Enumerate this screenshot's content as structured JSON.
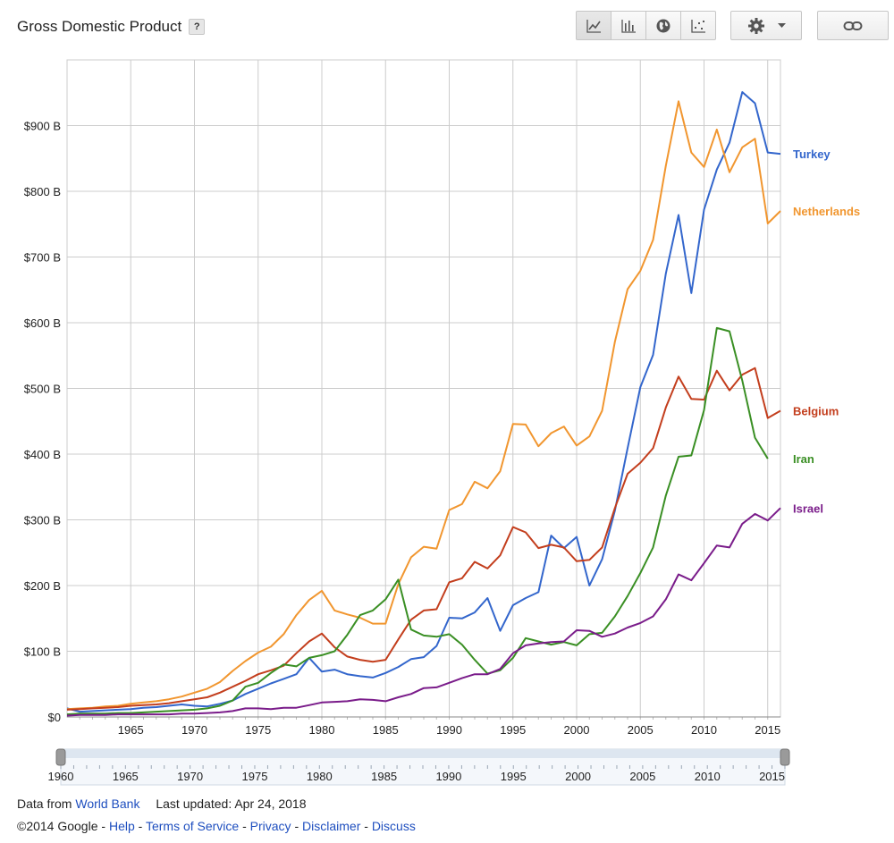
{
  "header": {
    "title": "Gross Domestic Product",
    "help_label": "?"
  },
  "toolbar": {
    "buttons": [
      {
        "name": "line-chart-icon",
        "active": true
      },
      {
        "name": "bar-chart-icon",
        "active": false
      },
      {
        "name": "map-globe-icon",
        "active": false
      },
      {
        "name": "scatter-chart-icon",
        "active": false
      }
    ],
    "settings_icon": "gear-icon",
    "link_icon": "link-icon"
  },
  "footer": {
    "data_from_label": "Data from",
    "data_source": "World Bank",
    "last_updated": "Last updated: Apr 24, 2018",
    "copyright": "©2014 Google",
    "links": [
      "Help",
      "Terms of Service",
      "Privacy",
      "Disclaimer",
      "Discuss"
    ]
  },
  "slider": {
    "tick_labels": [
      "1960",
      "1965",
      "1970",
      "1975",
      "1980",
      "1985",
      "1990",
      "1995",
      "2000",
      "2005",
      "2010",
      "2015"
    ],
    "range": [
      1960,
      2016
    ]
  },
  "chart_data": {
    "type": "line",
    "title": "Gross Domestic Product",
    "xlabel": "",
    "ylabel": "",
    "xlim": [
      1960,
      2016
    ],
    "ylim": [
      0,
      1000
    ],
    "x_ticks": [
      1965,
      1970,
      1975,
      1980,
      1985,
      1990,
      1995,
      2000,
      2005,
      2010,
      2015
    ],
    "y_ticks": [
      0,
      100,
      200,
      300,
      400,
      500,
      600,
      700,
      800,
      900
    ],
    "y_tick_labels": [
      "$0",
      "$100 B",
      "$200 B",
      "$300 B",
      "$400 B",
      "$500 B",
      "$600 B",
      "$700 B",
      "$800 B",
      "$900 B"
    ],
    "grid": true,
    "legend": "end-of-line labels, right",
    "x": [
      1960,
      1961,
      1962,
      1963,
      1964,
      1965,
      1966,
      1967,
      1968,
      1969,
      1970,
      1971,
      1972,
      1973,
      1974,
      1975,
      1976,
      1977,
      1978,
      1979,
      1980,
      1981,
      1982,
      1983,
      1984,
      1985,
      1986,
      1987,
      1988,
      1989,
      1990,
      1991,
      1992,
      1993,
      1994,
      1995,
      1996,
      1997,
      1998,
      1999,
      2000,
      2001,
      2002,
      2003,
      2004,
      2005,
      2006,
      2007,
      2008,
      2009,
      2010,
      2011,
      2012,
      2013,
      2014,
      2015,
      2016
    ],
    "series": [
      {
        "name": "Turkey",
        "color": "#3366cc",
        "values": [
          13,
          8,
          9,
          10,
          11,
          12,
          14,
          15,
          17,
          19,
          17,
          16,
          20,
          25,
          35,
          43,
          51,
          58,
          65,
          90,
          69,
          72,
          65,
          62,
          60,
          67,
          76,
          88,
          91,
          108,
          151,
          150,
          159,
          181,
          131,
          170,
          181,
          190,
          276,
          257,
          274,
          200,
          240,
          314,
          409,
          502,
          551,
          675,
          764,
          645,
          772,
          833,
          874,
          951,
          934,
          859,
          857
        ]
      },
      {
        "name": "Netherlands",
        "color": "#f1962f",
        "values": [
          12,
          13,
          14,
          16,
          17,
          20,
          22,
          24,
          27,
          31,
          37,
          43,
          53,
          70,
          85,
          98,
          107,
          126,
          155,
          178,
          192,
          162,
          156,
          151,
          142,
          142,
          202,
          243,
          259,
          256,
          315,
          324,
          358,
          348,
          374,
          446,
          445,
          412,
          432,
          442,
          413,
          427,
          466,
          571,
          651,
          679,
          726,
          839,
          937,
          859,
          837,
          894,
          829,
          867,
          880,
          751,
          770
        ]
      },
      {
        "name": "Belgium",
        "color": "#c33e1d",
        "values": [
          11,
          12,
          13,
          14,
          15,
          17,
          18,
          19,
          21,
          24,
          27,
          30,
          37,
          46,
          55,
          65,
          71,
          78,
          97,
          115,
          127,
          106,
          92,
          87,
          84,
          87,
          118,
          148,
          162,
          164,
          205,
          211,
          236,
          226,
          246,
          289,
          281,
          257,
          262,
          258,
          237,
          239,
          258,
          318,
          370,
          387,
          409,
          471,
          518,
          484,
          483,
          527,
          497,
          521,
          531,
          455,
          466
        ]
      },
      {
        "name": "Iran",
        "color": "#3a8f24",
        "values": [
          4,
          5,
          5,
          5,
          6,
          6,
          7,
          8,
          9,
          10,
          11,
          13,
          17,
          25,
          46,
          52,
          67,
          80,
          77,
          90,
          94,
          100,
          125,
          155,
          162,
          179,
          209,
          133,
          124,
          122,
          126,
          110,
          87,
          66,
          71,
          90,
          120,
          115,
          110,
          114,
          109,
          126,
          128,
          153,
          184,
          219,
          258,
          337,
          396,
          398,
          467,
          592,
          587,
          512,
          425,
          393,
          null
        ]
      },
      {
        "name": "Israel",
        "color": "#7a1c8a",
        "values": [
          2,
          3,
          3,
          3,
          4,
          4,
          4,
          4,
          4,
          5,
          5,
          6,
          7,
          9,
          13,
          13,
          12,
          14,
          14,
          18,
          22,
          23,
          24,
          27,
          26,
          24,
          30,
          35,
          44,
          45,
          52,
          59,
          65,
          65,
          73,
          97,
          109,
          112,
          114,
          115,
          132,
          131,
          122,
          127,
          136,
          143,
          153,
          179,
          217,
          208,
          234,
          261,
          258,
          294,
          309,
          299,
          318
        ]
      }
    ]
  }
}
